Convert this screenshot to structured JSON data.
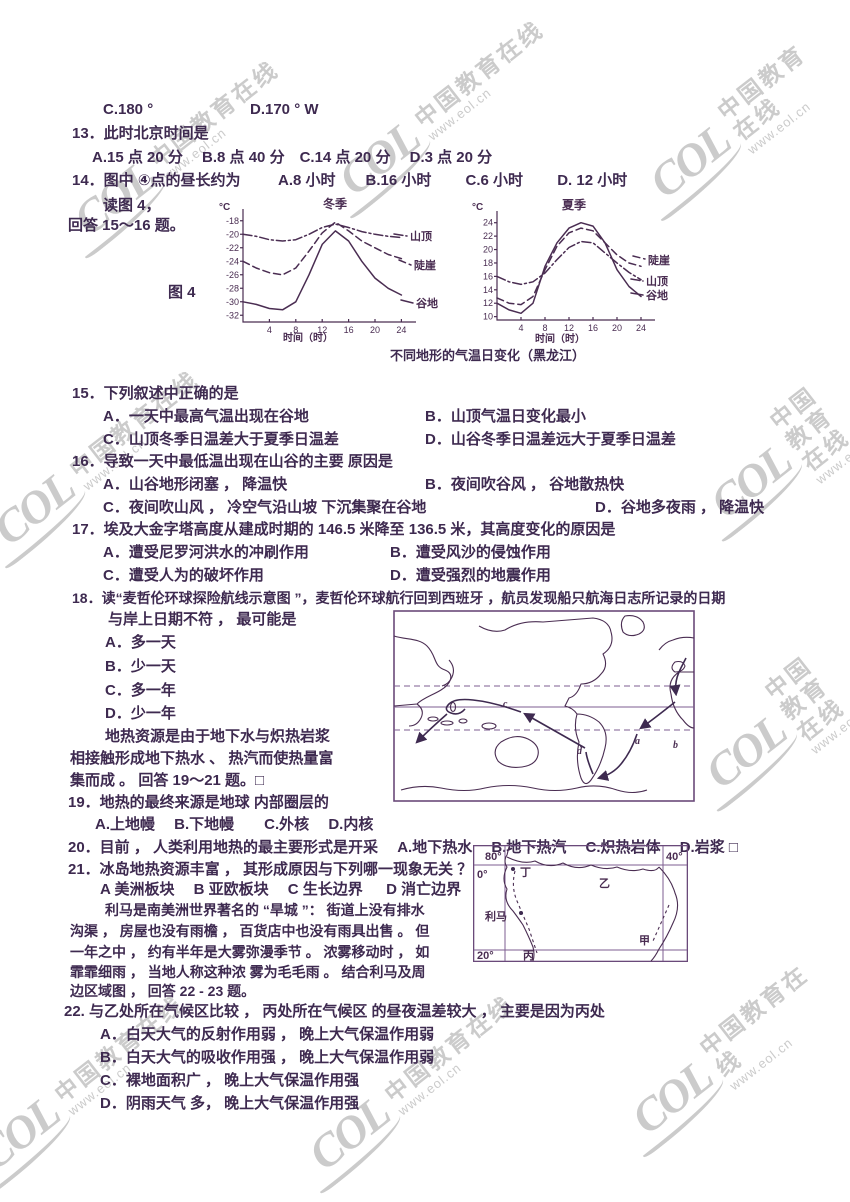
{
  "watermark": {
    "logo": "COL",
    "cn": "中国教育在线",
    "url": "www.eol.cn"
  },
  "q12": {
    "c": "C.180 °",
    "d": "D.170 °  W"
  },
  "q13": {
    "stem": "13．此时北京时间是",
    "opts": "A.15 点 20 分　 B.8 点 40 分　C.14 点 20 分　 D.3 点 20 分"
  },
  "q14": {
    "stem": "14．图中 ④点的昼长约为",
    "opts": "A.8 小时　　B.16 小时　　 C.6 小时　　 D. 12 小时"
  },
  "fig4": {
    "read": "读图 4，",
    "answer": "回答 15～16 题。",
    "label": "图 4",
    "caption": "不同地形的气温日变化（黑龙江）"
  },
  "q15": {
    "stem": "15．下列叙述中正确的是",
    "a": "A．一天中最高气温出现在谷地",
    "b": "B．山顶气温日变化最小",
    "c": "C．山顶冬季日温差大于夏季日温差",
    "d": "D．山谷冬季日温差远大于夏季日温差"
  },
  "q16": {
    "stem": "16．导致一天中最低温出现在山谷的主要 原因是",
    "a": "A．山谷地形闭塞 ， 降温快",
    "b": "B．夜间吹谷风 ， 谷地散热快",
    "c": "C．夜间吹山风 ， 冷空气沿山坡 下沉集聚在谷地",
    "d": "D．谷地多夜雨 ， 降温快"
  },
  "q17": {
    "stem": "17．埃及大金字塔高度从建成时期的 146.5 米降至 136.5 米，其高度变化的原因是",
    "a": "A．遭受尼罗河洪水的冲刷作用",
    "b": "B．遭受风沙的侵蚀作用",
    "c": "C．遭受人为的破坏作用",
    "d": "D．遭受强烈的地震作用"
  },
  "q18": {
    "stem1": "18．读“麦哲伦环球探险航线示意图 ”，麦哲伦环球航行回到西班牙 ，航员发现船只航海日志所记录的日期",
    "stem2": "与岸上日期不符 ， 最可能是",
    "a": "A．多一天",
    "b": "B．少一天",
    "c": "C．多一年",
    "d": "D．少一年"
  },
  "geo_para": {
    "l1": "地热资源是由于地下水与炽热岩浆",
    "l2": "相接触形成地下热水 、 热汽而使热量富",
    "l3": "集而成 。 回答 19～21 题。□"
  },
  "q19": {
    "stem": "19．地热的最终来源是地球 内部圈层的",
    "opts": "A.上地幔　 B.下地幔　　C.外核　 D.内核"
  },
  "q20": {
    "stem": "20．目前 ， 人类利用地热的最主要形式是开采 　A.地下热水 　B.地下热汽 　C.炽热岩体 　D.岩浆 □"
  },
  "q21": {
    "stem": "21．冰岛地热资源丰富 ， 其形成原因与下列哪一现象无关 ？",
    "opts": "A 美洲板块 　B 亚欧板块 　C 生长边界 　 D 消亡边界"
  },
  "lima_para": {
    "l1": "利马是南美洲世界著名的 “旱城 ”： 街道上没有排水",
    "l2": "沟渠 ， 房屋也没有雨檐 ， 百货店中也没有雨具出售 。 但",
    "l3": "一年之中 ， 约有半年是大雾弥漫季节 。 浓雾移动时 ， 如",
    "l4": "霏霏细雨 ， 当地人称这种浓 雾为毛毛雨 。 结合利马及周",
    "l5": "边区域图 ， 回答 22 - 23 题。"
  },
  "q22": {
    "stem": "22. 与乙处所在气候区比较 ， 丙处所在气候区 的昼夜温差较大 ， 主要是因为丙处",
    "a": "A．白天大气的反射作用弱 ， 晚上大气保温作用弱",
    "b": "B．白天大气的吸收作用强 ， 晚上大气保温作用弱",
    "c": "C．裸地面积广 ， 晚上大气保温作用强",
    "d": "D．阴雨天气 多， 晚上大气保温作用强"
  },
  "world_map": {
    "a": "a",
    "b": "b",
    "c": "c",
    "d": "d"
  },
  "region_map": {
    "lon_left": "80°",
    "lon_right": "40°",
    "lat_top": "0°",
    "lat_bottom": "20°",
    "pt_ding": "丁",
    "pt_yi": "乙",
    "pt_bing": "丙",
    "pt_jia": "甲",
    "lima": "利马"
  },
  "chart_data": [
    {
      "type": "line",
      "title": "冬季",
      "xlabel": "时间（时）",
      "ylabel": "°C",
      "x": [
        0,
        2,
        4,
        6,
        8,
        10,
        12,
        14,
        16,
        18,
        20,
        22,
        24
      ],
      "xticks": [
        4,
        8,
        12,
        16,
        20,
        24
      ],
      "yticks": [
        -18,
        -20,
        -22,
        -24,
        -26,
        -28,
        -30,
        -32
      ],
      "xlim": [
        0,
        24
      ],
      "ylim": [
        -32,
        -18
      ],
      "grid": false,
      "legend_position": "right",
      "series": [
        {
          "name": "山顶",
          "line_style": "dashdot",
          "values": [
            -20,
            -20.3,
            -20.8,
            -21,
            -20.8,
            -20,
            -19,
            -18.5,
            -19,
            -19.6,
            -20,
            -20.3,
            -20.5
          ]
        },
        {
          "name": "陡崖",
          "line_style": "dashed",
          "values": [
            -24,
            -25,
            -25.7,
            -26,
            -25,
            -22.5,
            -19.8,
            -18.2,
            -19.5,
            -21,
            -22,
            -23,
            -23.6
          ]
        },
        {
          "name": "谷地",
          "line_style": "solid",
          "values": [
            -30,
            -30.4,
            -31,
            -31.2,
            -30,
            -26,
            -21.5,
            -19.5,
            -21,
            -24,
            -26.5,
            -28,
            -29
          ]
        }
      ]
    },
    {
      "type": "line",
      "title": "夏季",
      "xlabel": "时间（时）",
      "ylabel": "°C",
      "x": [
        0,
        2,
        4,
        6,
        8,
        10,
        12,
        14,
        16,
        18,
        20,
        22,
        24
      ],
      "xticks": [
        4,
        8,
        12,
        16,
        20,
        24
      ],
      "yticks": [
        24,
        22,
        20,
        18,
        16,
        14,
        12,
        10
      ],
      "xlim": [
        0,
        24
      ],
      "ylim": [
        10,
        24
      ],
      "grid": false,
      "legend_position": "right",
      "series": [
        {
          "name": "陡崖",
          "line_style": "dashed",
          "values": [
            12.8,
            12,
            11.8,
            13,
            17,
            20.5,
            22.5,
            23.2,
            22.8,
            21,
            19.2,
            18,
            17.5
          ]
        },
        {
          "name": "山顶",
          "line_style": "dashdot",
          "values": [
            16,
            15.2,
            14.8,
            15.2,
            16.5,
            18.5,
            20.3,
            21.2,
            21,
            19.5,
            18,
            16.6,
            15.5
          ]
        },
        {
          "name": "谷地",
          "line_style": "solid",
          "values": [
            12,
            11,
            10.5,
            12,
            17.5,
            21,
            23.2,
            24,
            23.5,
            21,
            17,
            14.5,
            13
          ]
        }
      ]
    }
  ]
}
